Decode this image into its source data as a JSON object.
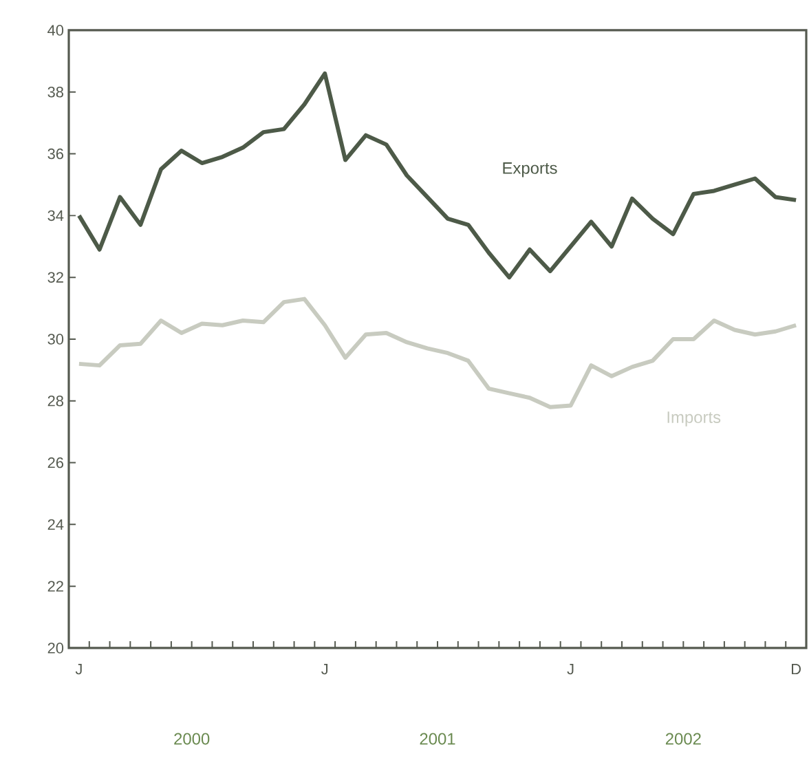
{
  "chart_data": {
    "type": "line",
    "categories": [
      "J",
      null,
      null,
      null,
      null,
      null,
      null,
      null,
      null,
      null,
      null,
      null,
      "J",
      null,
      null,
      null,
      null,
      null,
      null,
      null,
      null,
      null,
      null,
      null,
      "J",
      null,
      null,
      null,
      null,
      null,
      null,
      null,
      null,
      null,
      null,
      "D"
    ],
    "series": [
      {
        "name": "Exports",
        "color": "#4d5a48",
        "values": [
          34.0,
          32.9,
          34.6,
          33.7,
          35.5,
          36.1,
          35.7,
          35.9,
          36.2,
          36.7,
          36.8,
          37.6,
          38.6,
          35.8,
          36.6,
          36.3,
          35.3,
          34.6,
          33.9,
          33.7,
          32.8,
          32.0,
          32.9,
          32.2,
          33.0,
          33.8,
          33.0,
          34.55,
          33.9,
          33.4,
          34.7,
          34.8,
          35.0,
          35.2,
          34.6,
          34.5
        ]
      },
      {
        "name": "Imports",
        "color": "#c8cbc0",
        "values": [
          29.2,
          29.15,
          29.8,
          29.85,
          30.6,
          30.2,
          30.5,
          30.45,
          30.6,
          30.55,
          31.2,
          31.3,
          30.45,
          29.4,
          30.15,
          30.2,
          29.9,
          29.7,
          29.55,
          29.3,
          28.4,
          28.25,
          28.1,
          27.8,
          27.85,
          29.15,
          28.8,
          29.1,
          29.3,
          30.0,
          30.0,
          30.6,
          30.3,
          30.15,
          30.25,
          30.45
        ]
      }
    ],
    "ylim": [
      20,
      40
    ],
    "yticks": [
      20,
      22,
      24,
      26,
      28,
      30,
      32,
      34,
      36,
      38,
      40
    ],
    "annotations": [
      "2000",
      "2001",
      "2002"
    ]
  }
}
